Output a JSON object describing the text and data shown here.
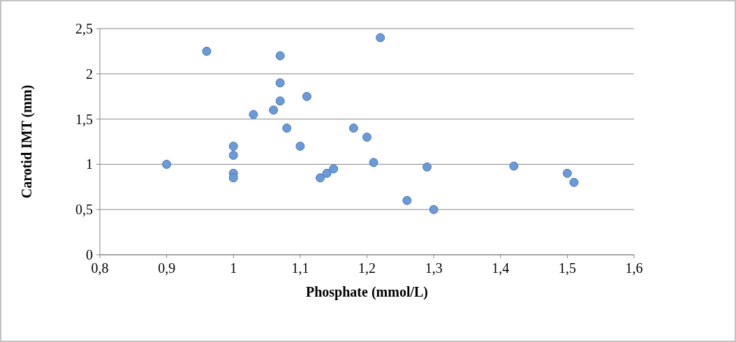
{
  "chart_data": {
    "type": "scatter",
    "xlabel": "Phosphate (mmol/L)",
    "ylabel": "Carotid IMT (mm)",
    "x": [
      0.9,
      0.96,
      1.07,
      1.07,
      1.07,
      1.03,
      1.06,
      1.11,
      1.08,
      1.0,
      1.0,
      1.0,
      1.0,
      1.1,
      1.13,
      1.14,
      1.15,
      1.18,
      1.2,
      1.22,
      1.21,
      1.26,
      1.29,
      1.3,
      1.42,
      1.5,
      1.51
    ],
    "series": [
      {
        "color": "#6a9ad8",
        "values": [
          1.0,
          2.25,
          2.2,
          1.9,
          1.7,
          1.55,
          1.6,
          1.75,
          1.4,
          1.2,
          1.1,
          0.9,
          0.85,
          1.2,
          0.85,
          0.9,
          0.95,
          1.4,
          1.3,
          2.4,
          1.02,
          0.6,
          0.97,
          0.5,
          0.98,
          0.9,
          0.8
        ]
      }
    ],
    "xlim": [
      0.8,
      1.6
    ],
    "xticks": [
      {
        "value": 0.8,
        "label": "0,8"
      },
      {
        "value": 0.9,
        "label": "0,9"
      },
      1,
      {
        "value": 1.1,
        "label": "1,1"
      },
      {
        "value": 1.2,
        "label": "1,2"
      },
      {
        "value": 1.3,
        "label": "1,3"
      },
      {
        "value": 1.4,
        "label": "1,4"
      },
      {
        "value": 1.5,
        "label": "1,5"
      },
      {
        "value": 1.6,
        "label": "1,6"
      }
    ],
    "ylim": [
      0,
      2.5
    ],
    "yticks": [
      0,
      {
        "value": 0.5,
        "label": "0,5"
      },
      1,
      {
        "value": 1.5,
        "label": "1,5"
      },
      2,
      {
        "value": 2.5,
        "label": "2,5"
      }
    ],
    "grid": "y",
    "marker": "circle"
  }
}
